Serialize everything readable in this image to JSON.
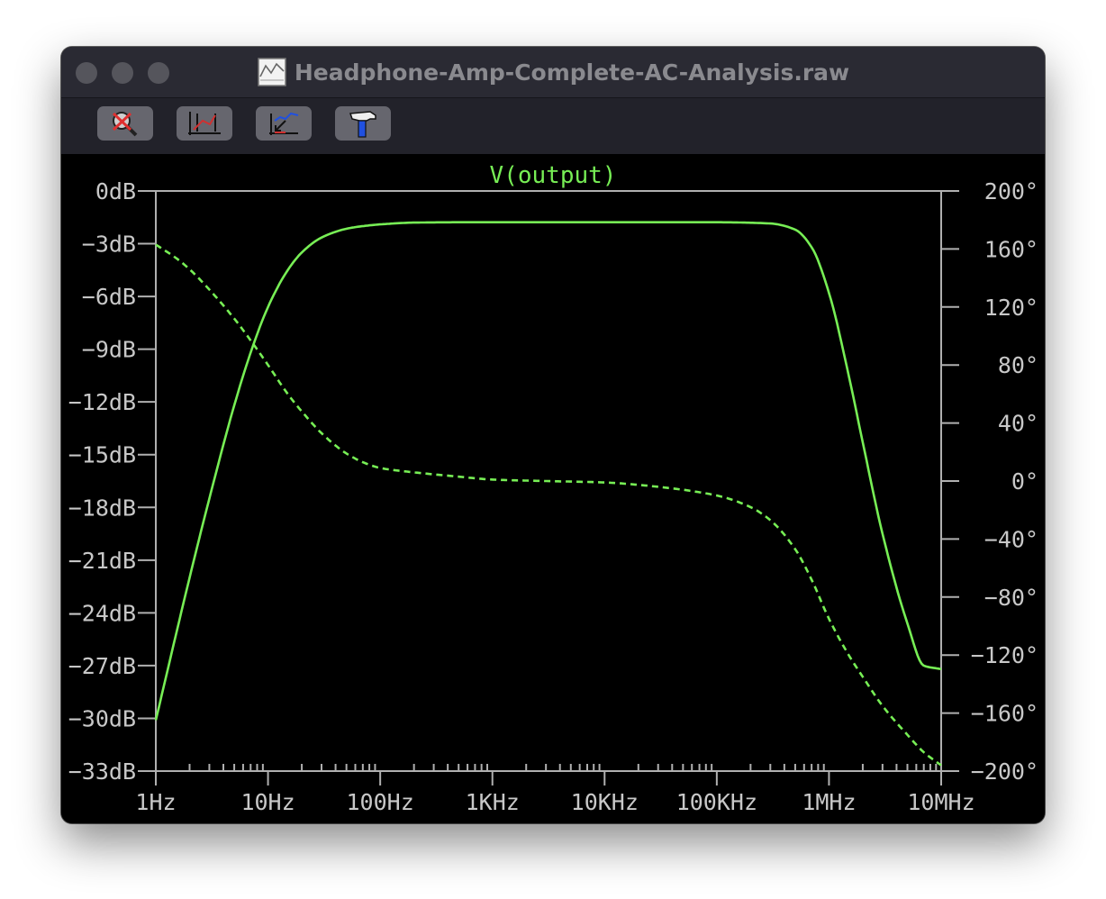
{
  "window": {
    "title": "Headphone-Amp-Complete-AC-Analysis.raw"
  },
  "toolbar": {
    "icons": [
      "zoom-cancel-icon",
      "autorange-icon",
      "zoom-back-icon",
      "hammer-icon"
    ]
  },
  "chart_data": {
    "type": "line",
    "title": "V(output)",
    "colors": {
      "trace": "#77ee55",
      "axis": "#b0b0b0",
      "background": "#000000"
    },
    "x_scale": "log",
    "xlim": [
      1,
      10000000
    ],
    "x_ticks": [
      {
        "v": 1,
        "label": "1Hz"
      },
      {
        "v": 10,
        "label": "10Hz"
      },
      {
        "v": 100,
        "label": "100Hz"
      },
      {
        "v": 1000,
        "label": "1KHz"
      },
      {
        "v": 10000,
        "label": "10KHz"
      },
      {
        "v": 100000,
        "label": "100KHz"
      },
      {
        "v": 1000000,
        "label": "1MHz"
      },
      {
        "v": 10000000,
        "label": "10MHz"
      }
    ],
    "y_left": {
      "lim": [
        -33,
        0
      ],
      "ticks": [
        {
          "v": 0,
          "label": "0dB"
        },
        {
          "v": -3,
          "label": "-3dB"
        },
        {
          "v": -6,
          "label": "-6dB"
        },
        {
          "v": -9,
          "label": "-9dB"
        },
        {
          "v": -12,
          "label": "-12dB"
        },
        {
          "v": -15,
          "label": "-15dB"
        },
        {
          "v": -18,
          "label": "-18dB"
        },
        {
          "v": -21,
          "label": "-21dB"
        },
        {
          "v": -24,
          "label": "-24dB"
        },
        {
          "v": -27,
          "label": "-27dB"
        },
        {
          "v": -30,
          "label": "-30dB"
        },
        {
          "v": -33,
          "label": "-33dB"
        }
      ]
    },
    "y_right": {
      "lim": [
        -200,
        200
      ],
      "ticks": [
        {
          "v": 200,
          "label": "200°"
        },
        {
          "v": 160,
          "label": "160°"
        },
        {
          "v": 120,
          "label": "120°"
        },
        {
          "v": 80,
          "label": "80°"
        },
        {
          "v": 40,
          "label": "40°"
        },
        {
          "v": 0,
          "label": "0°"
        },
        {
          "v": -40,
          "label": "-40°"
        },
        {
          "v": -80,
          "label": "-80°"
        },
        {
          "v": -120,
          "label": "-120°"
        },
        {
          "v": -160,
          "label": "-160°"
        },
        {
          "v": -200,
          "label": "-200°"
        }
      ]
    },
    "series": [
      {
        "name": "V(output)",
        "axis": "left",
        "style": "solid",
        "x": [
          1,
          2,
          3,
          5,
          7,
          10,
          15,
          20,
          30,
          50,
          70,
          100,
          200,
          500,
          1000,
          10000,
          100000,
          300000,
          500000,
          700000,
          1000000,
          1500000,
          2000000,
          3000000,
          5000000,
          7000000,
          10000000
        ],
        "values": [
          -30.1,
          -22.0,
          -17.5,
          -12.2,
          -9.2,
          -6.6,
          -4.5,
          -3.5,
          -2.65,
          -2.15,
          -2.0,
          -1.9,
          -1.8,
          -1.78,
          -1.78,
          -1.78,
          -1.78,
          -1.85,
          -2.2,
          -3.2,
          -5.8,
          -10.5,
          -14.3,
          -19.5,
          -24.6,
          -27.0,
          -27.2
        ]
      },
      {
        "name": "phase",
        "axis": "right",
        "style": "dashed",
        "x": [
          1,
          1.5,
          2,
          3,
          5,
          7,
          10,
          15,
          20,
          30,
          50,
          70,
          100,
          200,
          500,
          1000,
          3000,
          10000,
          30000,
          100000,
          200000,
          300000,
          500000,
          700000,
          1000000,
          1500000,
          2000000,
          3000000,
          5000000,
          7000000,
          10000000
        ],
        "values": [
          163,
          154,
          146,
          132,
          112,
          97,
          80,
          60,
          48,
          33,
          19,
          13,
          9,
          6,
          3,
          1,
          0,
          -1,
          -4,
          -10,
          -18,
          -27,
          -47,
          -68,
          -95,
          -120,
          -135,
          -155,
          -175,
          -187,
          -196
        ]
      }
    ]
  }
}
